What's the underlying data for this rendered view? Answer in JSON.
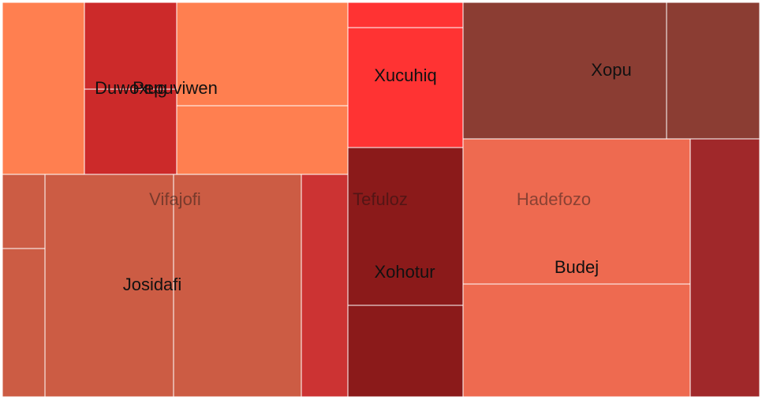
{
  "chart_data": {
    "type": "treemap",
    "groups": [
      {
        "name": "Duwoxug",
        "color": "#cc2a2a",
        "children": [
          {
            "value": 46,
            "color": "#ff7f50"
          },
          {
            "value": 22,
            "color": "#cc2a2a"
          },
          {
            "value": 25,
            "color": "#cc2a2a"
          }
        ]
      },
      {
        "name": "Pepuviwen",
        "color": "#ff7f50",
        "children": [
          {
            "value": 56,
            "color": "#ff7f50"
          },
          {
            "value": 38,
            "color": "#ff7f50"
          }
        ]
      },
      {
        "name": "Xucuhiq",
        "color": "#ff3333",
        "children": [
          {
            "value": 9,
            "color": "#ff3333"
          },
          {
            "value": 44,
            "color": "#ff3333"
          }
        ]
      },
      {
        "name": "Xopu",
        "color": "#8b3d33",
        "children": [
          {
            "value": 90,
            "color": "#8b3d33"
          },
          {
            "value": 42,
            "color": "#8b3d33"
          }
        ]
      },
      {
        "name": "Vifajofi",
        "color": "#cc5c44",
        "children": [
          {
            "value": 13,
            "color": "#cc5c44"
          },
          {
            "value": 27,
            "color": "#cc5c44"
          },
          {
            "value": 105,
            "color": "#cc5c44"
          },
          {
            "value": 107,
            "color": "#cc5c44"
          },
          {
            "value": 39,
            "color": "#cc3333"
          }
        ]
      },
      {
        "name": "Tefuloz",
        "color": "#8b1a1a",
        "children": [
          {
            "value": 59,
            "color": "#8b1a1a"
          },
          {
            "value": 38,
            "color": "#8b1a1a"
          }
        ]
      },
      {
        "name": "Hadefozo",
        "color": "#ee6a50",
        "children": [
          {
            "value": 106,
            "color": "#ee6a50"
          },
          {
            "value": 85,
            "color": "#ee6a50"
          },
          {
            "value": 48,
            "color": "#a0282a"
          }
        ]
      }
    ],
    "labels": [
      {
        "text": "Duwoxug",
        "group": 0,
        "muted": false
      },
      {
        "text": "Pepuviwen",
        "group": 1,
        "muted": false
      },
      {
        "text": "Xucuhiq",
        "group": 2,
        "muted": false
      },
      {
        "text": "Xopu",
        "group": 3,
        "muted": false
      },
      {
        "text": "Vifajofi",
        "group": 4,
        "muted": true
      },
      {
        "text": "Josidafi",
        "group": 4,
        "muted": false
      },
      {
        "text": "Tefuloz",
        "group": 5,
        "muted": true
      },
      {
        "text": "Xohotur",
        "group": 5,
        "muted": false
      },
      {
        "text": "Hadefozo",
        "group": 6,
        "muted": true
      },
      {
        "text": "Budej",
        "group": 6,
        "muted": false
      }
    ]
  }
}
